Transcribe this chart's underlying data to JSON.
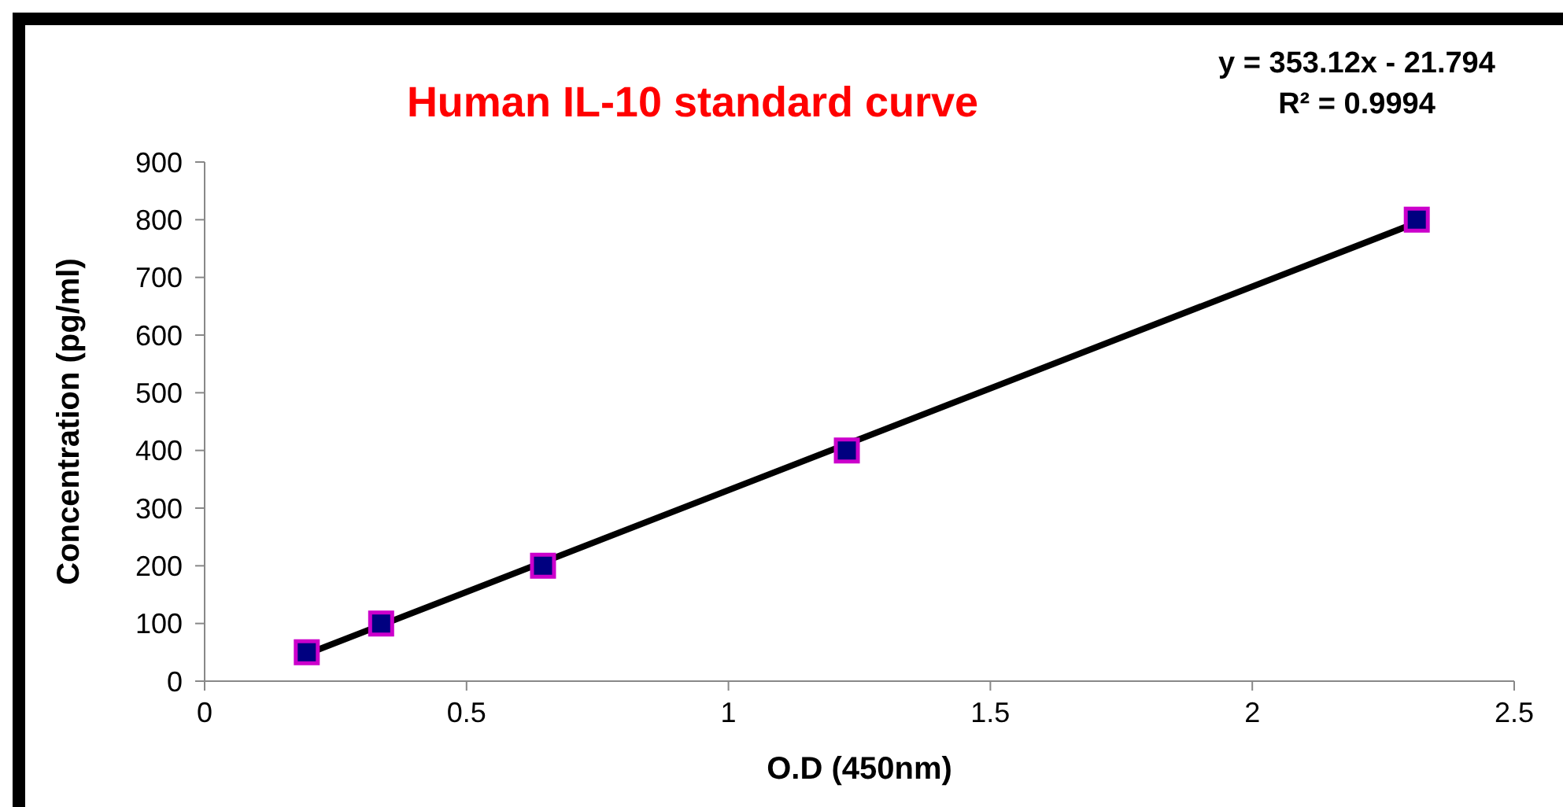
{
  "chart_data": {
    "type": "scatter",
    "title": "Human IL-10 standard curve",
    "xlabel": "O.D (450nm)",
    "ylabel": "Concentration (pg/ml)",
    "annotations": [
      "y = 353.12x - 21.794",
      "R² = 0.9994"
    ],
    "series": [
      {
        "color": "#000080",
        "x": [
          0.195,
          0.337,
          0.646,
          1.226,
          2.314
        ],
        "values": [
          50,
          100,
          200,
          400,
          800
        ],
        "marker": "square"
      },
      {
        "type": "line",
        "color": "#000000",
        "x": [
          0.195,
          2.314
        ],
        "values": [
          47,
          795
        ],
        "marker": "none"
      }
    ],
    "xlim": [
      0,
      2.5
    ],
    "xticks": [
      0,
      0.5,
      1,
      1.5,
      2,
      2.5
    ],
    "ylim": [
      0,
      900
    ],
    "yticks": [
      0,
      100,
      200,
      300,
      400,
      500,
      600,
      700,
      800,
      900
    ],
    "grid": false
  }
}
